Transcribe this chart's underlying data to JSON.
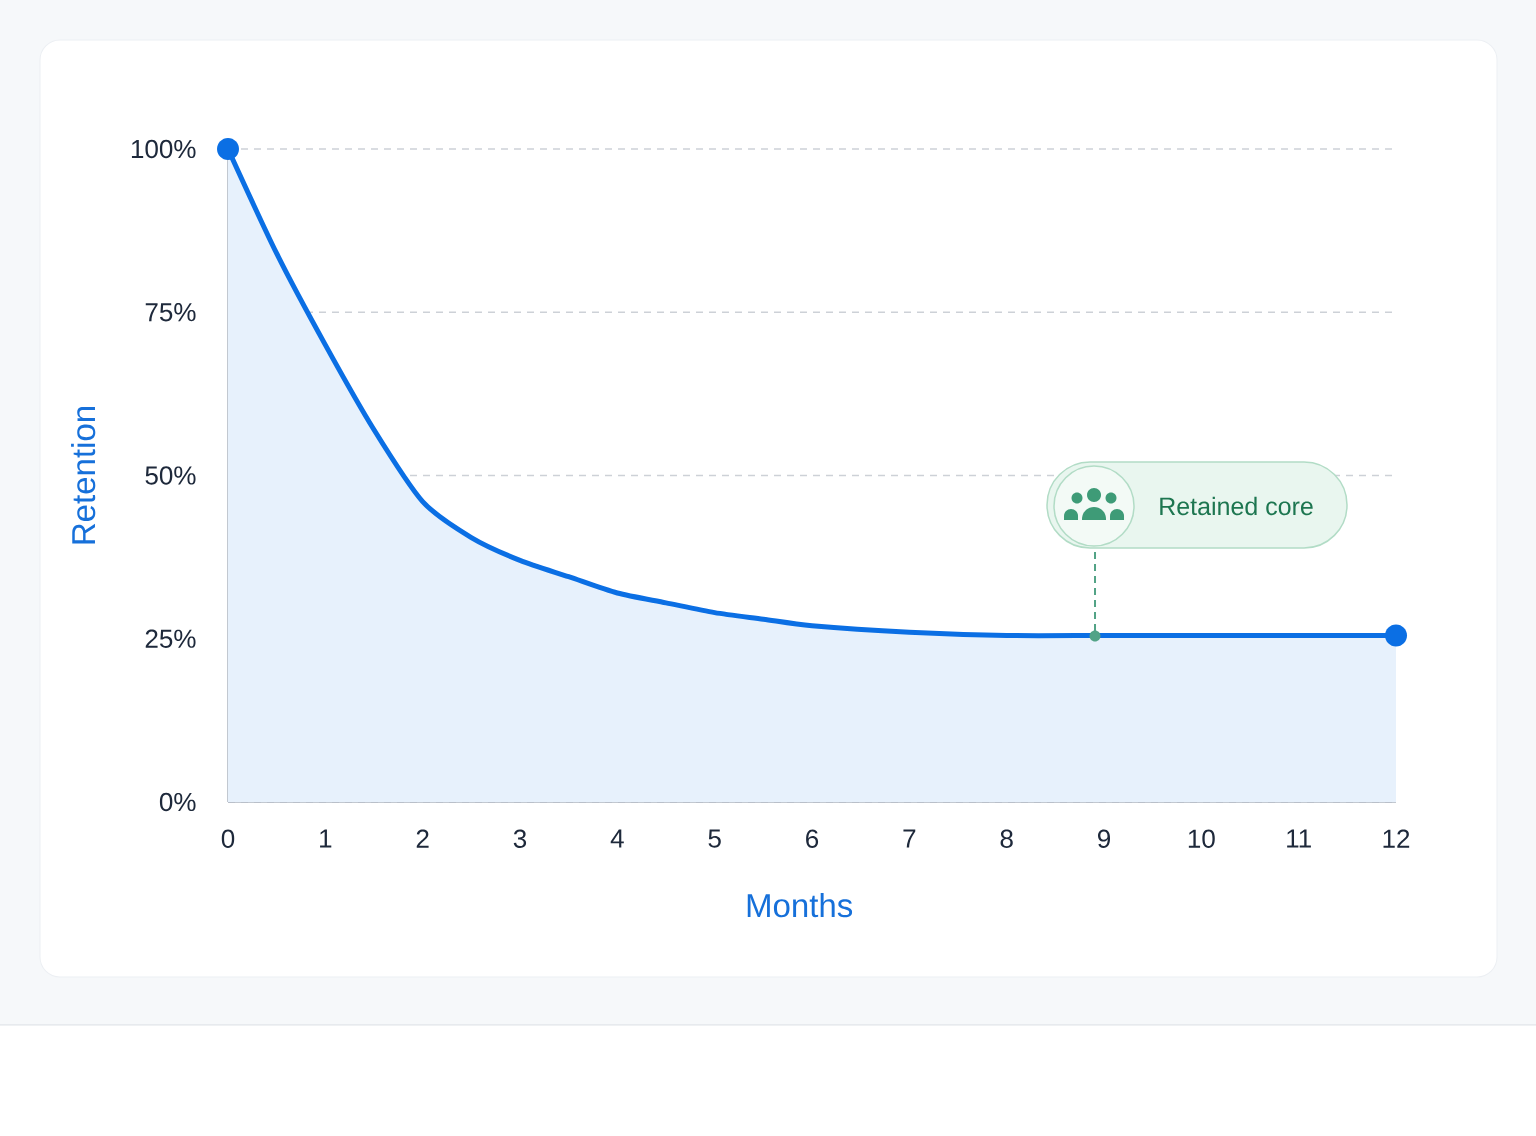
{
  "chart_data": {
    "type": "area",
    "xlabel": "Months",
    "ylabel": "Retention",
    "x": [
      0,
      0.5,
      1,
      1.5,
      2,
      2.5,
      3,
      3.5,
      4,
      4.5,
      5,
      5.5,
      6,
      7,
      8,
      9,
      10,
      11,
      12
    ],
    "series": [
      {
        "color": "#0b6fe4",
        "values": [
          100,
          84,
          70,
          57,
          46,
          40.5,
          37,
          34.5,
          32,
          30.5,
          29,
          28,
          27,
          26,
          25.5,
          25.5,
          25.5,
          25.5,
          25.5
        ]
      },
      {
        "type": "scatter",
        "x": [
          0,
          12
        ],
        "values": [
          100,
          25.5
        ],
        "color": "#0b6fe4",
        "marker": "circle"
      }
    ],
    "xlim": [
      0,
      12
    ],
    "ylim": [
      0,
      100
    ],
    "xticks": [
      0,
      1,
      2,
      3,
      4,
      5,
      6,
      7,
      8,
      9,
      10,
      11,
      12
    ],
    "yticks": [
      {
        "value": 0,
        "label": "0%"
      },
      {
        "value": 25,
        "label": "25%"
      },
      {
        "value": 50,
        "label": "50%"
      },
      {
        "value": 75,
        "label": "75%"
      },
      {
        "value": 100,
        "label": "100%"
      }
    ],
    "grid": "y",
    "annotations": [
      "Retained core"
    ]
  }
}
